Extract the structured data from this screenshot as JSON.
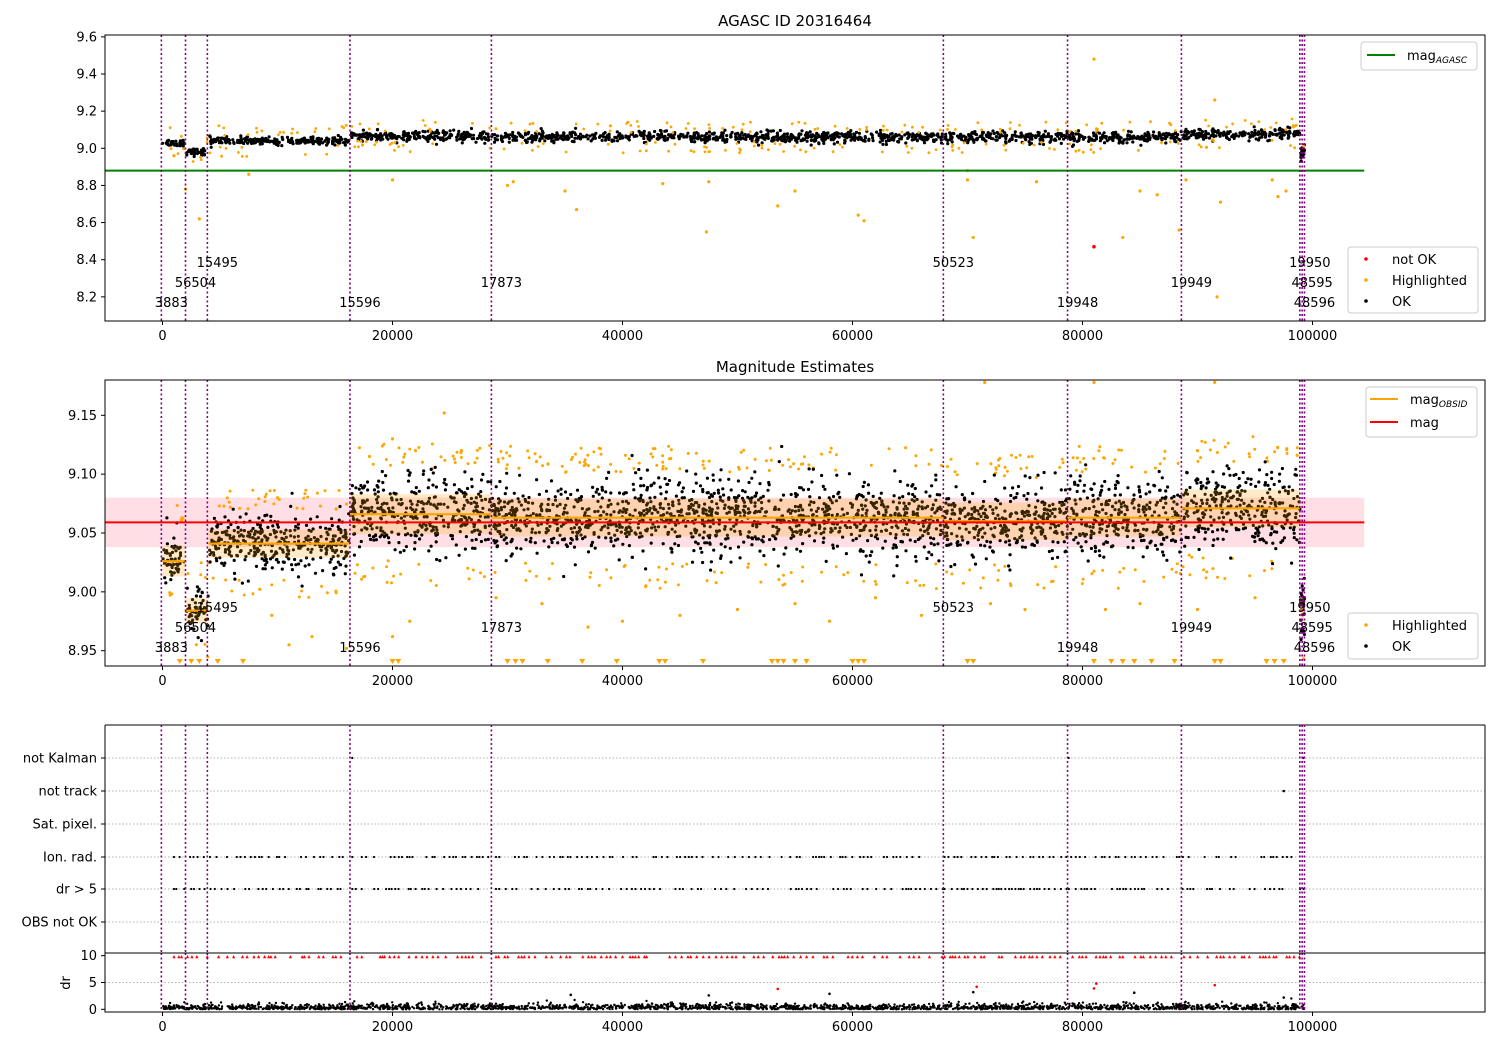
{
  "colors": {
    "ok": "#000000",
    "highlighted": "#ffa500",
    "not_ok": "#ff0000",
    "mag_agasc": "#008000",
    "mag": "#ff0000",
    "mag_obsid": "#ffa500",
    "obsid_line": "#800080",
    "band": "#ffc0cb"
  },
  "chart_data": [
    {
      "type": "scatter",
      "title": "AGASC ID 20316464",
      "xlim": [
        -5000,
        115000
      ],
      "ylim": [
        8.07,
        9.61
      ],
      "xticks": [
        0,
        20000,
        40000,
        60000,
        80000,
        100000
      ],
      "yticks": [
        8.2,
        8.4,
        8.6,
        8.8,
        9.0,
        9.2,
        9.4,
        9.6
      ],
      "ytick_labels": [
        "8.2",
        "8.4",
        "8.6",
        "8.8",
        "9.0",
        "9.2",
        "9.4",
        "9.6"
      ],
      "legend_location": "lower right",
      "lines": [
        {
          "name": "mag_AGASC",
          "y": 8.88,
          "x_range": [
            -5000,
            104500
          ],
          "color": "#008000"
        }
      ],
      "legend": {
        "upper": [
          {
            "label": "mag",
            "sub": "AGASC",
            "kind": "line",
            "color": "#008000"
          }
        ],
        "lower": [
          {
            "label": "not OK",
            "kind": "point",
            "color": "#ff0000"
          },
          {
            "label": "Highlighted",
            "kind": "point",
            "color": "#ffa500"
          },
          {
            "label": "OK",
            "kind": "point",
            "color": "#000000"
          }
        ]
      },
      "series": [
        {
          "name": "OK",
          "segments": [
            {
              "x": [
                0,
                1900
              ],
              "mean": 9.03,
              "spread": 0.01
            },
            {
              "x": [
                2100,
                4000
              ],
              "mean": 8.98,
              "spread": 0.01
            },
            {
              "x": [
                4100,
                16200
              ],
              "mean": 9.04,
              "spread": 0.01
            },
            {
              "x": [
                16400,
                28700
              ],
              "mean": 9.065,
              "spread": 0.015
            },
            {
              "x": [
                28800,
                67900
              ],
              "mean": 9.06,
              "spread": 0.015
            },
            {
              "x": [
                68000,
                78700
              ],
              "mean": 9.06,
              "spread": 0.015
            },
            {
              "x": [
                78800,
                88600
              ],
              "mean": 9.06,
              "spread": 0.015
            },
            {
              "x": [
                88700,
                99000
              ],
              "mean": 9.075,
              "spread": 0.015
            },
            {
              "x": [
                99000,
                99300
              ],
              "mean": 8.98,
              "spread": 0.02
            }
          ]
        },
        {
          "name": "Highlighted",
          "points": [
            [
              1000,
              8.96
            ],
            [
              2000,
              8.78
            ],
            [
              3200,
              8.62
            ],
            [
              7500,
              8.86
            ],
            [
              20000,
              8.83
            ],
            [
              30000,
              8.8
            ],
            [
              30500,
              8.82
            ],
            [
              35000,
              8.77
            ],
            [
              36000,
              8.67
            ],
            [
              43500,
              8.81
            ],
            [
              47500,
              8.82
            ],
            [
              47300,
              8.55
            ],
            [
              53500,
              8.69
            ],
            [
              55000,
              8.77
            ],
            [
              60500,
              8.64
            ],
            [
              61000,
              8.61
            ],
            [
              70000,
              8.88
            ],
            [
              70500,
              8.52
            ],
            [
              70000,
              8.83
            ],
            [
              76000,
              8.82
            ],
            [
              81000,
              9.48
            ],
            [
              83500,
              8.52
            ],
            [
              85000,
              8.77
            ],
            [
              86500,
              8.75
            ],
            [
              88400,
              8.56
            ],
            [
              89000,
              8.83
            ],
            [
              91500,
              9.26
            ],
            [
              91700,
              8.2
            ],
            [
              92000,
              8.71
            ],
            [
              96500,
              8.83
            ],
            [
              97000,
              8.74
            ],
            [
              97700,
              8.77
            ]
          ]
        },
        {
          "name": "not OK",
          "points": [
            [
              81000,
              8.47
            ]
          ]
        }
      ],
      "obsids": [
        {
          "x": -100,
          "label": "3883",
          "level": 0
        },
        {
          "x": 2000,
          "label": "56504",
          "level": 1
        },
        {
          "x": 3900,
          "label": "15495",
          "level": 2
        },
        {
          "x": 16300,
          "label": "15596",
          "level": 0
        },
        {
          "x": 28600,
          "label": "17873",
          "level": 1
        },
        {
          "x": 67900,
          "label": "50523",
          "level": 2
        },
        {
          "x": 78700,
          "label": "19948",
          "level": 0
        },
        {
          "x": 88600,
          "label": "19949",
          "level": 1
        },
        {
          "x": 98900,
          "label": "19950",
          "level": 2
        },
        {
          "x": 99100,
          "label": "48595",
          "level": 1
        },
        {
          "x": 99300,
          "label": "48596",
          "level": 0
        }
      ]
    },
    {
      "type": "scatter",
      "title": "Magnitude Estimates",
      "xlim": [
        -5000,
        115000
      ],
      "ylim": [
        8.937,
        9.18
      ],
      "xticks": [
        0,
        20000,
        40000,
        60000,
        80000,
        100000
      ],
      "yticks": [
        8.95,
        9.0,
        9.05,
        9.1,
        9.15
      ],
      "ytick_labels": [
        "8.95",
        "9.00",
        "9.05",
        "9.10",
        "9.15"
      ],
      "legend_location": "lower right",
      "mag": {
        "value": 9.059,
        "band": [
          9.038,
          9.08
        ],
        "x_range": [
          -5000,
          104500
        ]
      },
      "mag_obsid": [
        {
          "x": [
            0,
            2000
          ],
          "value": 9.026,
          "std": 0.013
        },
        {
          "x": [
            2000,
            4000
          ],
          "value": 8.984,
          "std": 0.011
        },
        {
          "x": [
            4000,
            16300
          ],
          "value": 9.041,
          "std": 0.012
        },
        {
          "x": [
            16300,
            28600
          ],
          "value": 9.066,
          "std": 0.017
        },
        {
          "x": [
            28600,
            67900
          ],
          "value": 9.063,
          "std": 0.016
        },
        {
          "x": [
            67900,
            78700
          ],
          "value": 9.06,
          "std": 0.016
        },
        {
          "x": [
            78700,
            88600
          ],
          "value": 9.063,
          "std": 0.016
        },
        {
          "x": [
            88600,
            98900
          ],
          "value": 9.071,
          "std": 0.016
        },
        {
          "x": [
            98900,
            99300
          ],
          "value": 8.985,
          "std": 0.01
        }
      ],
      "legend": {
        "upper": [
          {
            "label": "mag",
            "sub": "OBSID",
            "kind": "line",
            "color": "#ffa500"
          },
          {
            "label": "mag",
            "sub": "",
            "kind": "line",
            "color": "#ff0000"
          }
        ],
        "lower": [
          {
            "label": "Highlighted",
            "kind": "point",
            "color": "#ffa500"
          },
          {
            "label": "OK",
            "kind": "point",
            "color": "#000000"
          }
        ]
      },
      "series": [
        {
          "name": "OK",
          "segments": [
            {
              "x": [
                0,
                1900
              ],
              "mean": 9.03,
              "spread": 0.012
            },
            {
              "x": [
                2100,
                4000
              ],
              "mean": 8.984,
              "spread": 0.011
            },
            {
              "x": [
                4100,
                16200
              ],
              "mean": 9.041,
              "spread": 0.012
            },
            {
              "x": [
                16400,
                28700
              ],
              "mean": 9.066,
              "spread": 0.016
            },
            {
              "x": [
                28800,
                67900
              ],
              "mean": 9.063,
              "spread": 0.016
            },
            {
              "x": [
                68000,
                78700
              ],
              "mean": 9.06,
              "spread": 0.015
            },
            {
              "x": [
                78800,
                88600
              ],
              "mean": 9.063,
              "spread": 0.016
            },
            {
              "x": [
                88700,
                98900
              ],
              "mean": 9.071,
              "spread": 0.016
            },
            {
              "x": [
                98950,
                99300
              ],
              "mean": 8.985,
              "spread": 0.012
            }
          ]
        },
        {
          "name": "Highlighted",
          "points": [
            [
              20000,
              9.13
            ],
            [
              24500,
              9.152
            ],
            [
              22000,
              9.12
            ],
            [
              18000,
              9.115
            ],
            [
              26000,
              9.12
            ],
            [
              71500,
              9.178
            ],
            [
              81000,
              9.178
            ],
            [
              91500,
              9.178
            ],
            [
              90000,
              9.12
            ],
            [
              10000,
              9.08
            ],
            [
              9500,
              8.98
            ],
            [
              20000,
              8.962
            ],
            [
              21500,
              8.975
            ],
            [
              11000,
              8.955
            ],
            [
              16000,
              8.952
            ],
            [
              13000,
              8.962
            ],
            [
              29000,
              8.995
            ],
            [
              33000,
              8.99
            ],
            [
              37000,
              8.97
            ],
            [
              40000,
              8.975
            ],
            [
              45000,
              8.98
            ],
            [
              50000,
              8.985
            ],
            [
              55000,
              8.99
            ],
            [
              58000,
              8.975
            ],
            [
              62000,
              8.995
            ],
            [
              66000,
              8.98
            ],
            [
              72000,
              8.99
            ],
            [
              75000,
              8.985
            ],
            [
              82000,
              8.985
            ],
            [
              85000,
              8.99
            ],
            [
              90000,
              8.985
            ],
            [
              95000,
              8.995
            ]
          ]
        },
        {
          "name": "Highlighted below range",
          "x": [
            1500,
            2500,
            3200,
            4800,
            7000,
            20000,
            20500,
            30000,
            30700,
            31300,
            33500,
            36500,
            39500,
            43200,
            43700,
            47000,
            53000,
            53500,
            54000,
            55000,
            56000,
            60000,
            60500,
            61000,
            70000,
            70500,
            81000,
            82500,
            83500,
            84500,
            86000,
            88000,
            91500,
            92000,
            96000,
            96700,
            97500
          ]
        }
      ]
    },
    {
      "type": "scatter",
      "title": "",
      "xlim": [
        -5000,
        115000
      ],
      "xticks": [
        0,
        20000,
        40000,
        60000,
        80000,
        100000
      ],
      "flag_labels": [
        "not Kalman",
        "not track",
        "Sat. pixel.",
        "Ion. rad.",
        "dr > 5",
        "OBS not OK"
      ],
      "flags": {
        "not_kalman": [
          [
            16500
          ],
          [
            78800
          ],
          [
            99200
          ]
        ],
        "not_track": [
          [
            97500
          ]
        ],
        "ion_rad_ranges": [
          [
            1000,
            16000
          ],
          [
            16500,
            28500
          ],
          [
            29000,
            68000
          ],
          [
            68000,
            99300
          ]
        ],
        "dr_gt_5_ranges": [
          [
            1000,
            16000
          ],
          [
            16500,
            28500
          ],
          [
            29000,
            68000
          ],
          [
            68000,
            99300
          ]
        ]
      }
    },
    {
      "type": "scatter",
      "title": "",
      "ylabel": "dr",
      "xlim": [
        -5000,
        115000
      ],
      "ylim": [
        -0.5,
        10.5
      ],
      "xticks": [
        0,
        20000,
        40000,
        60000,
        80000,
        100000
      ],
      "yticks": [
        0,
        5,
        10
      ],
      "ytick_labels": [
        "0",
        "5",
        "10"
      ],
      "series": [
        {
          "name": "dr",
          "mean": 0.3,
          "spread": 0.4
        },
        {
          "name": "dr clipped",
          "y": 9.8
        },
        {
          "name": "dr outliers",
          "points": [
            [
              35500,
              2.7
            ],
            [
              47500,
              2.6
            ],
            [
              53500,
              3.8
            ],
            [
              58000,
              2.9
            ],
            [
              70500,
              3.2
            ],
            [
              70800,
              4.2
            ],
            [
              81000,
              3.9
            ],
            [
              81200,
              4.8
            ],
            [
              84500,
              3.1
            ],
            [
              91500,
              4.5
            ],
            [
              97500,
              2.2
            ]
          ]
        }
      ]
    }
  ],
  "xtick_labels": [
    "0",
    "20000",
    "40000",
    "60000",
    "80000",
    "100000"
  ]
}
